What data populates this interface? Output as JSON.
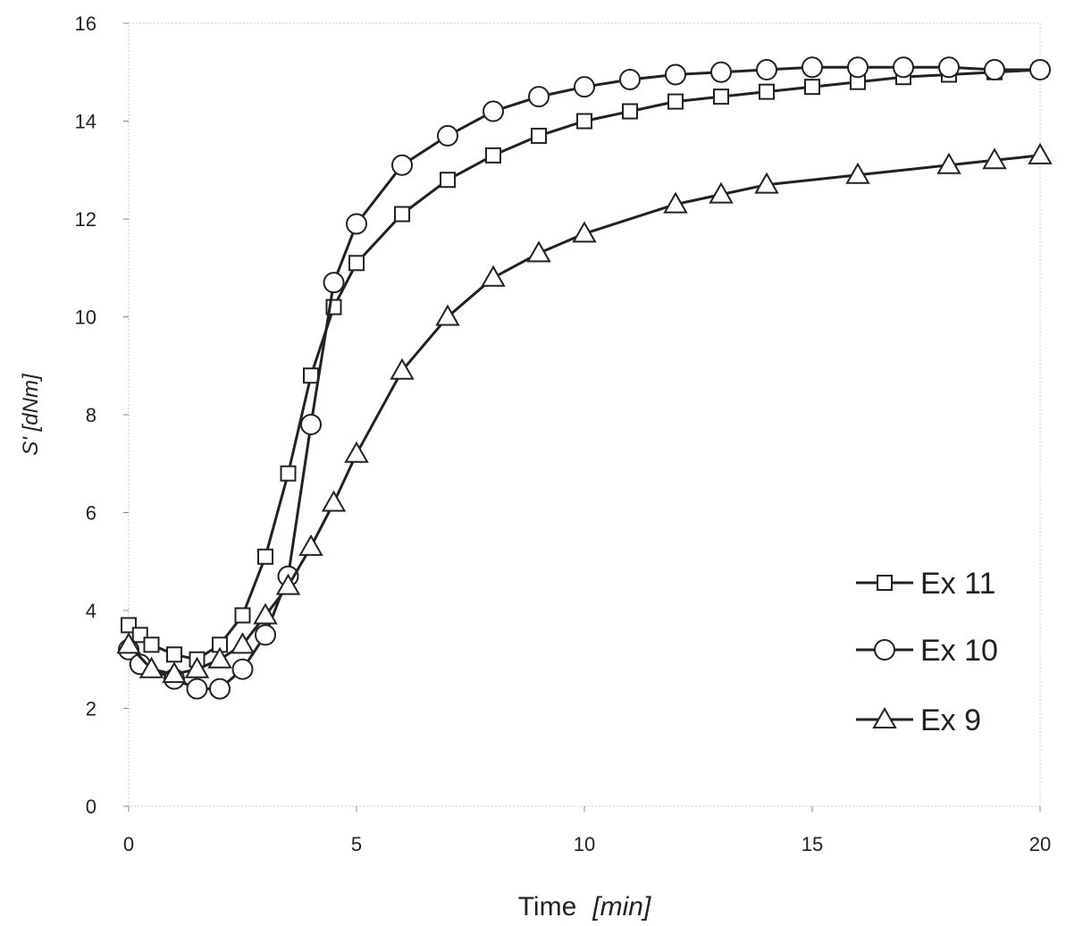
{
  "chart_data": {
    "type": "line",
    "xlabel": "Time",
    "xunit": "[min]",
    "ylabel": "S' [dNm]",
    "xlim": [
      0,
      20
    ],
    "ylim": [
      0,
      16
    ],
    "xticks": [
      0,
      5,
      10,
      15,
      20
    ],
    "yticks": [
      0,
      2,
      4,
      6,
      8,
      10,
      12,
      14,
      16
    ],
    "grid": false,
    "legend": "right",
    "series": [
      {
        "name": "Ex 11",
        "marker": "square",
        "x": [
          0,
          0.25,
          0.5,
          1,
          1.5,
          2,
          2.5,
          3,
          3.5,
          4,
          4.5,
          5,
          6,
          7,
          8,
          9,
          10,
          11,
          12,
          13,
          14,
          15,
          16,
          17,
          18,
          19,
          20
        ],
        "y": [
          3.7,
          3.5,
          3.3,
          3.1,
          3.0,
          3.3,
          3.9,
          5.1,
          6.8,
          8.8,
          10.2,
          11.1,
          12.1,
          12.8,
          13.3,
          13.7,
          14.0,
          14.2,
          14.4,
          14.5,
          14.6,
          14.7,
          14.8,
          14.9,
          14.95,
          15.0,
          15.05
        ]
      },
      {
        "name": "Ex 10",
        "marker": "circle",
        "x": [
          0,
          0.25,
          1,
          1.5,
          2,
          2.5,
          3,
          3.5,
          4,
          4.5,
          5,
          6,
          7,
          8,
          9,
          10,
          11,
          12,
          13,
          14,
          15,
          16,
          17,
          18,
          19,
          20
        ],
        "y": [
          3.2,
          2.9,
          2.6,
          2.4,
          2.4,
          2.8,
          3.5,
          4.7,
          7.8,
          10.7,
          11.9,
          13.1,
          13.7,
          14.2,
          14.5,
          14.7,
          14.85,
          14.95,
          15.0,
          15.05,
          15.1,
          15.1,
          15.1,
          15.1,
          15.05,
          15.05
        ]
      },
      {
        "name": "Ex 9",
        "marker": "triangle",
        "x": [
          0,
          0.5,
          1,
          1.5,
          2,
          2.5,
          3,
          3.5,
          4,
          4.5,
          5,
          6,
          7,
          8,
          9,
          10,
          12,
          13,
          14,
          16,
          18,
          19,
          20
        ],
        "y": [
          3.3,
          2.8,
          2.7,
          2.8,
          3.0,
          3.3,
          3.9,
          4.5,
          5.3,
          6.2,
          7.2,
          8.9,
          10.0,
          10.8,
          11.3,
          11.7,
          12.3,
          12.5,
          12.7,
          12.9,
          13.1,
          13.2,
          13.3
        ]
      }
    ]
  }
}
